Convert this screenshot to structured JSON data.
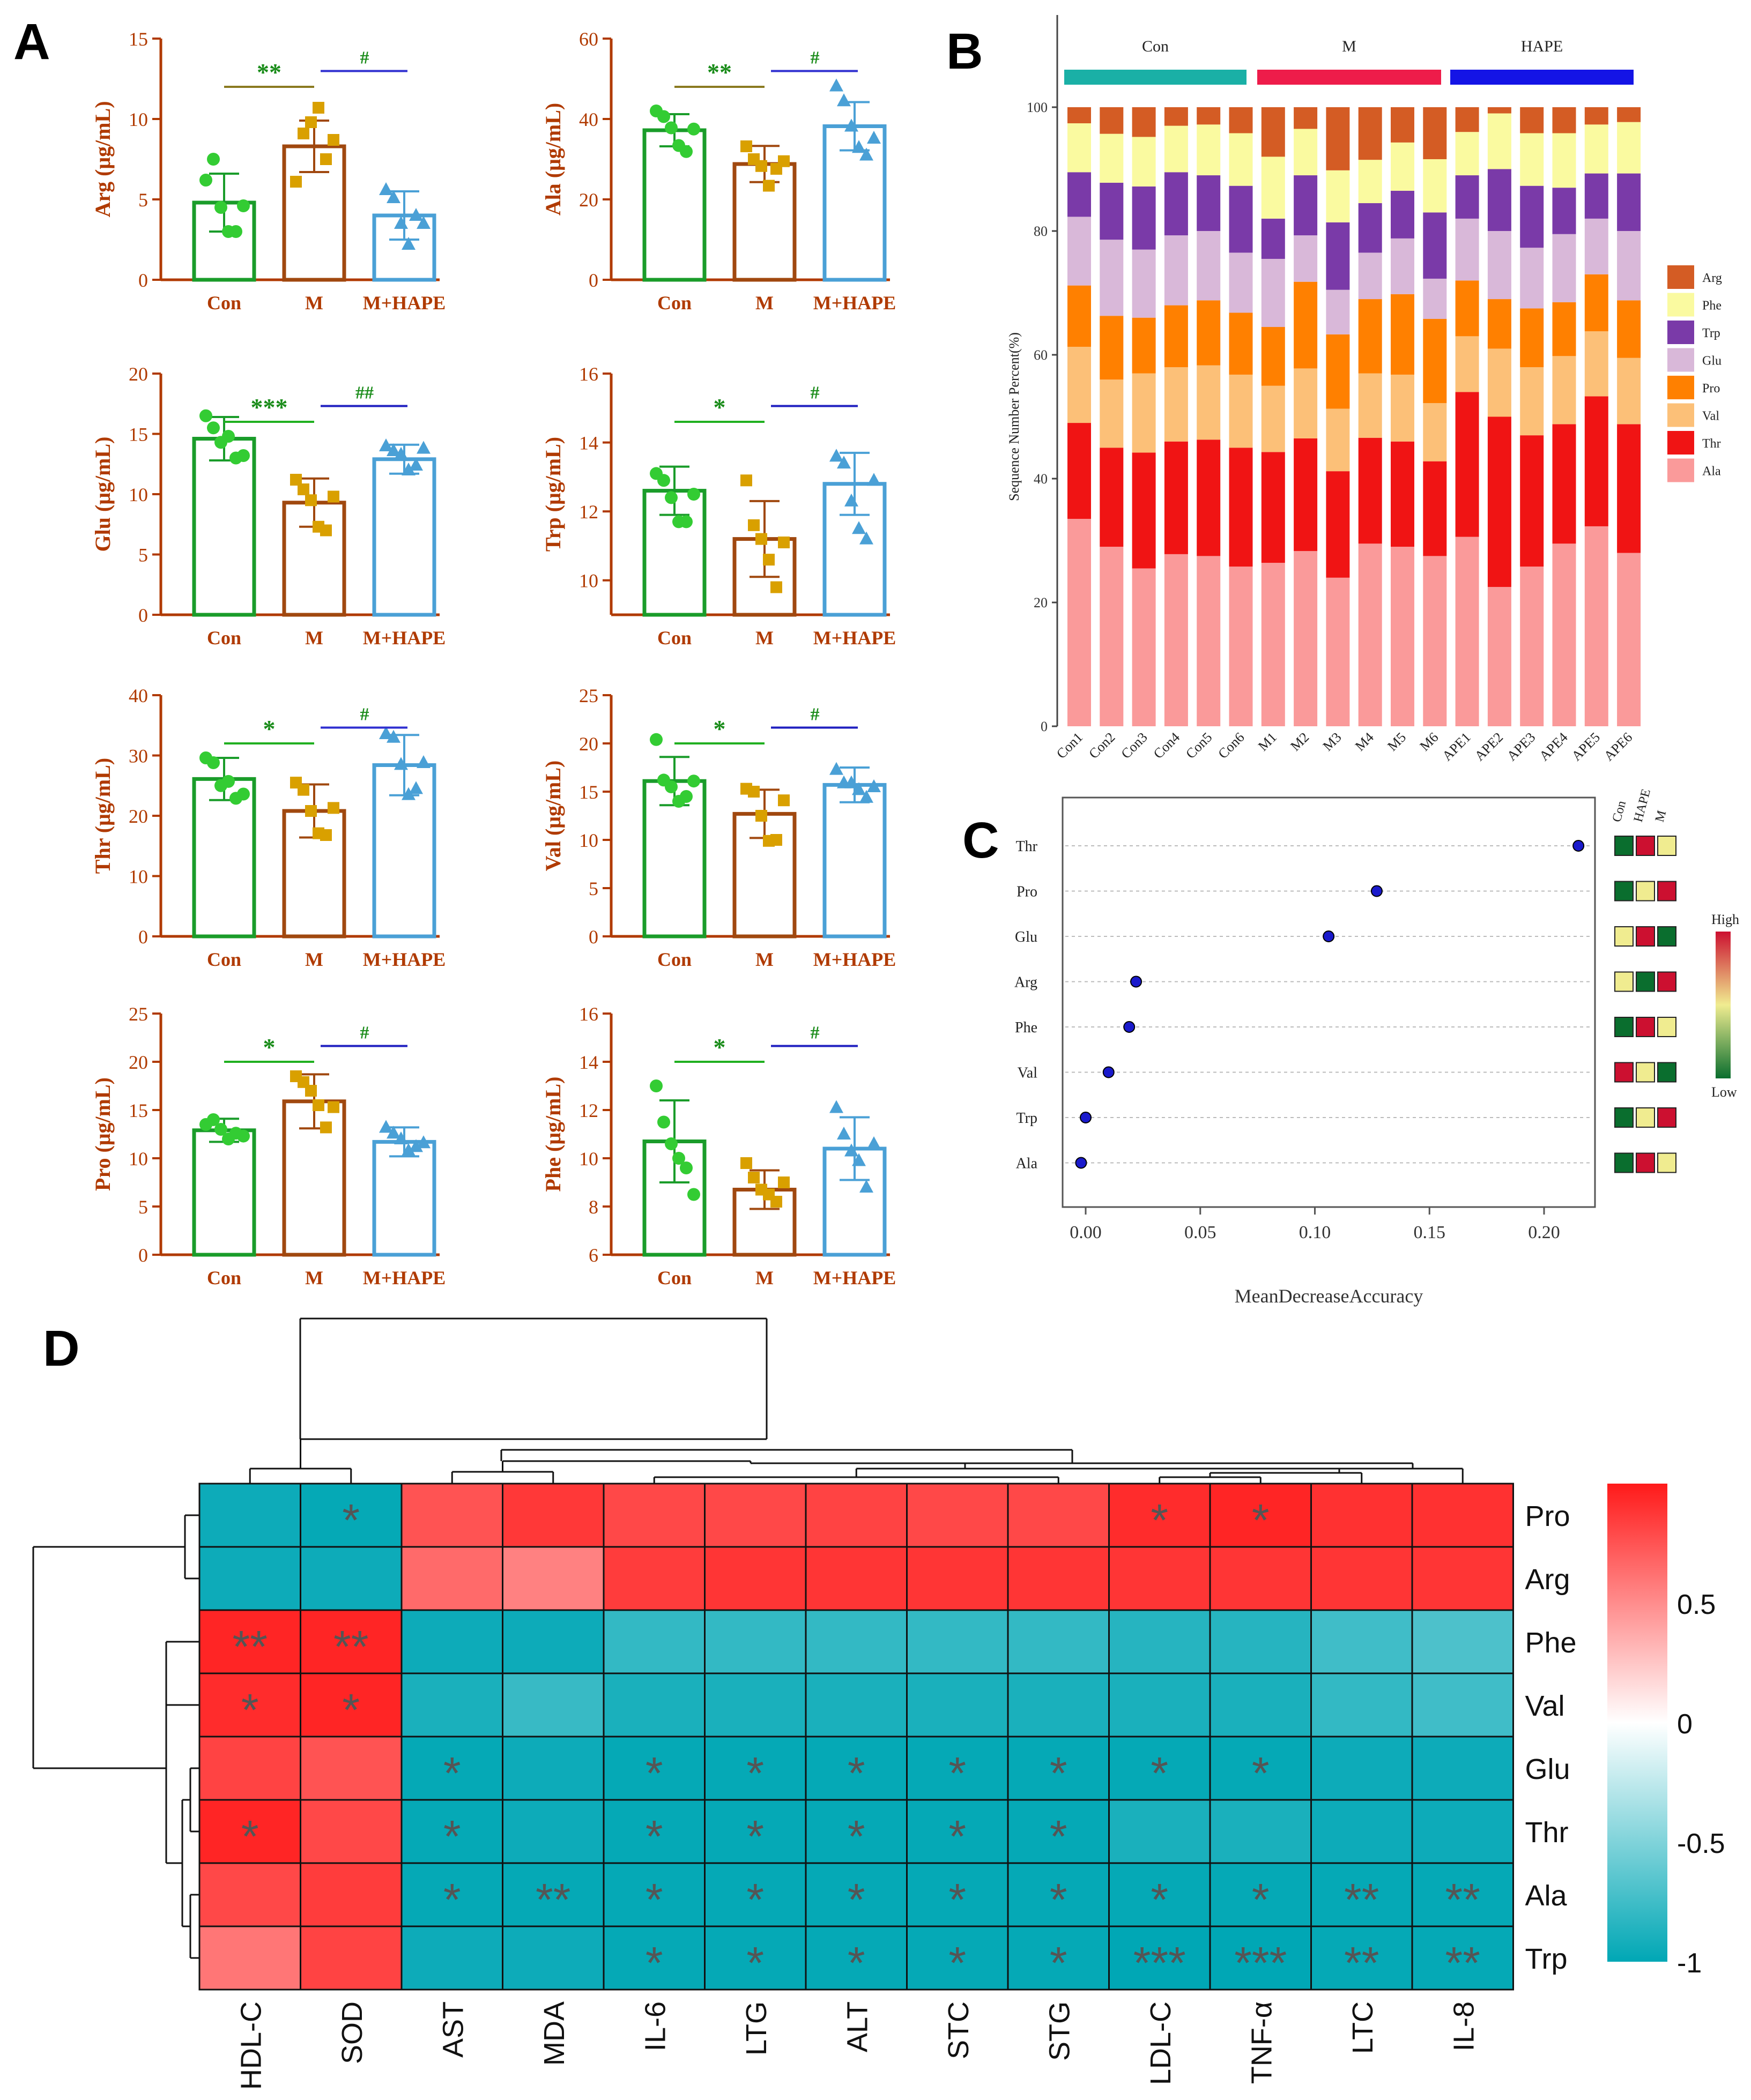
{
  "panel_labels": {
    "A": "A",
    "B": "B",
    "C": "C",
    "D": "D"
  },
  "colors": {
    "con": "#1a9c2a",
    "con_dot": "#33cc33",
    "m": "#a0480f",
    "m_dot": "#d9a000",
    "hape": "#4aa0d6",
    "sig_star": "#1a8c1a",
    "hash": "#2020c0",
    "axis_text": "#b03a00",
    "heat_high": "#ff1a1a",
    "heat_low": "#00a7b5"
  },
  "chart_data": [
    {
      "type": "bar",
      "id": "arg",
      "ylabel": "Arg (μg/mL)",
      "categories": [
        "Con",
        "M",
        "M+HAPE"
      ],
      "ylim": [
        0,
        15
      ],
      "yticks": [
        "0",
        "5",
        "10",
        "15"
      ],
      "values": [
        4.8,
        8.3,
        4.0
      ],
      "errors": [
        1.8,
        1.6,
        1.5
      ],
      "points": [
        [
          6.2,
          7.5,
          4.5,
          3.0,
          3.0,
          4.6
        ],
        [
          6.1,
          9.1,
          9.8,
          10.7,
          7.5,
          8.7
        ],
        [
          5.6,
          5.1,
          3.5,
          2.2,
          4.0,
          3.5
        ]
      ],
      "sig1": "**",
      "sig1_color": "#8a7a20",
      "sig2": "#",
      "sig2_color": "#3030d0"
    },
    {
      "type": "bar",
      "id": "ala",
      "ylabel": "Ala (μg/mL)",
      "categories": [
        "Con",
        "M",
        "M+HAPE"
      ],
      "ylim": [
        0,
        60
      ],
      "yticks": [
        "0",
        "20",
        "40",
        "60"
      ],
      "values": [
        37.2,
        28.8,
        38.2
      ],
      "errors": [
        4.0,
        4.5,
        6.0
      ],
      "points": [
        [
          42.0,
          40.6,
          37.8,
          33.4,
          31.9,
          37.5
        ],
        [
          33.2,
          30.0,
          28.3,
          23.4,
          27.6,
          29.5
        ],
        [
          48.2,
          44.5,
          38.2,
          32.9,
          31.0,
          35.2
        ]
      ],
      "sig1": "**",
      "sig1_color": "#8a7a20",
      "sig2": "#",
      "sig2_color": "#3030d0"
    },
    {
      "type": "bar",
      "id": "glu",
      "ylabel": "Glu (μg/mL)",
      "categories": [
        "Con",
        "M",
        "M+HAPE"
      ],
      "ylim": [
        0,
        20
      ],
      "yticks": [
        "0",
        "5",
        "10",
        "15",
        "20"
      ],
      "values": [
        14.6,
        9.3,
        12.9
      ],
      "errors": [
        1.8,
        2.0,
        1.2
      ],
      "points": [
        [
          16.5,
          15.5,
          14.3,
          14.8,
          13.0,
          13.2
        ],
        [
          11.2,
          10.4,
          9.5,
          7.3,
          7.0,
          9.8
        ],
        [
          14.0,
          13.6,
          13.3,
          12.0,
          12.4,
          13.8
        ]
      ],
      "sig1": "***",
      "sig1_color": "#20b020",
      "sig2": "##",
      "sig2_color": "#2020c0"
    },
    {
      "type": "bar",
      "id": "trp",
      "ylabel": "Trp (μg/mL)",
      "categories": [
        "Con",
        "M",
        "M+HAPE"
      ],
      "ylim": [
        9,
        16
      ],
      "yticks": [
        "10",
        "12",
        "14",
        "16"
      ],
      "values": [
        12.6,
        11.2,
        12.8
      ],
      "errors": [
        0.7,
        1.1,
        0.9
      ],
      "points": [
        [
          13.1,
          12.9,
          12.4,
          11.7,
          11.7,
          12.5
        ],
        [
          12.9,
          11.6,
          11.2,
          10.6,
          9.8,
          11.1
        ],
        [
          13.6,
          13.4,
          12.3,
          11.5,
          11.2,
          12.9
        ]
      ],
      "sig1": "*",
      "sig1_color": "#20b020",
      "sig2": "#",
      "sig2_color": "#2020c0"
    },
    {
      "type": "bar",
      "id": "thr",
      "ylabel": "Thr (μg/mL)",
      "categories": [
        "Con",
        "M",
        "M+HAPE"
      ],
      "ylim": [
        0,
        40
      ],
      "yticks": [
        "0",
        "10",
        "20",
        "30",
        "40"
      ],
      "values": [
        26.1,
        20.8,
        28.4
      ],
      "errors": [
        3.5,
        4.4,
        5.0
      ],
      "points": [
        [
          29.6,
          28.8,
          25.0,
          25.7,
          22.9,
          23.6
        ],
        [
          25.5,
          24.3,
          20.8,
          17.1,
          16.8,
          21.3
        ],
        [
          33.6,
          33.0,
          28.5,
          23.5,
          24.5,
          28.8
        ]
      ],
      "sig1": "*",
      "sig1_color": "#20b020",
      "sig2": "#",
      "sig2_color": "#3030d0"
    },
    {
      "type": "bar",
      "id": "val",
      "ylabel": "Val (μg/mL)",
      "categories": [
        "Con",
        "M",
        "M+HAPE"
      ],
      "ylim": [
        0,
        25
      ],
      "yticks": [
        "0",
        "5",
        "10",
        "15",
        "20",
        "25"
      ],
      "values": [
        16.1,
        12.7,
        15.7
      ],
      "errors": [
        2.5,
        2.5,
        1.8
      ],
      "points": [
        [
          20.4,
          16.2,
          15.5,
          14.0,
          14.5,
          16.1
        ],
        [
          15.3,
          15.0,
          12.5,
          9.9,
          10.0,
          14.1
        ],
        [
          17.3,
          15.9,
          15.9,
          15.2,
          14.4,
          15.5
        ]
      ],
      "sig1": "*",
      "sig1_color": "#20b020",
      "sig2": "#",
      "sig2_color": "#2020c0"
    },
    {
      "type": "bar",
      "id": "pro",
      "ylabel": "Pro (μg/mL)",
      "categories": [
        "Con",
        "M",
        "M+HAPE"
      ],
      "ylim": [
        0,
        25
      ],
      "yticks": [
        "0",
        "5",
        "10",
        "15",
        "20",
        "25"
      ],
      "values": [
        12.9,
        15.9,
        11.7
      ],
      "errors": [
        1.2,
        2.8,
        1.5
      ],
      "points": [
        [
          13.5,
          14.0,
          13.0,
          12.0,
          12.6,
          12.3
        ],
        [
          18.5,
          17.9,
          17.0,
          15.5,
          13.2,
          15.3
        ],
        [
          13.2,
          12.6,
          12.0,
          10.8,
          11.2,
          11.6
        ]
      ],
      "sig1": "*",
      "sig1_color": "#20b020",
      "sig2": "#",
      "sig2_color": "#2020c0"
    },
    {
      "type": "bar",
      "id": "phe",
      "ylabel": "Phe (μg/mL)",
      "categories": [
        "Con",
        "M",
        "M+HAPE"
      ],
      "ylim": [
        6,
        16
      ],
      "yticks": [
        "6",
        "8",
        "10",
        "12",
        "14",
        "16"
      ],
      "values": [
        10.7,
        8.7,
        10.4
      ],
      "errors": [
        1.7,
        0.8,
        1.3
      ],
      "points": [
        [
          13.0,
          11.5,
          10.6,
          10.0,
          9.6,
          8.5
        ],
        [
          9.8,
          9.2,
          8.7,
          8.5,
          8.2,
          9.0
        ],
        [
          12.1,
          11.0,
          10.3,
          9.9,
          8.8,
          10.6
        ]
      ],
      "sig1": "*",
      "sig1_color": "#20b020",
      "sig2": "#",
      "sig2_color": "#2020c0"
    },
    {
      "type": "stacked_bar",
      "id": "composition",
      "ylabel": "Sequence Number Percent(%)",
      "yticks": [
        "0",
        "20",
        "40",
        "60",
        "80",
        "100"
      ],
      "ylim": [
        0,
        100
      ],
      "categories": [
        "Con1",
        "Con2",
        "Con3",
        "Con4",
        "Con5",
        "Con6",
        "M1",
        "M2",
        "M3",
        "M4",
        "M5",
        "M6",
        "APE1",
        "APE2",
        "APE3",
        "APE4",
        "APE5",
        "APE6"
      ],
      "groups": [
        {
          "name": "Con",
          "color": "#1ab0a6"
        },
        {
          "name": "M",
          "color": "#ee1c4a"
        },
        {
          "name": "HAPE",
          "color": "#1414e6"
        }
      ],
      "stack_order": [
        "Ala",
        "Thr",
        "Val",
        "Pro",
        "Glu",
        "Trp",
        "Phe",
        "Arg"
      ],
      "legend": [
        {
          "name": "Arg",
          "color": "#d45c24"
        },
        {
          "name": "Phe",
          "color": "#fafaa0"
        },
        {
          "name": "Trp",
          "color": "#7a3aa8"
        },
        {
          "name": "Glu",
          "color": "#d9b8d9"
        },
        {
          "name": "Pro",
          "color": "#ff8000"
        },
        {
          "name": "Val",
          "color": "#fcc078"
        },
        {
          "name": "Thr",
          "color": "#f01414"
        },
        {
          "name": "Ala",
          "color": "#fa9a9a"
        }
      ],
      "cumulative": [
        [
          33.5,
          49.0,
          61.3,
          71.2,
          82.3,
          89.5,
          97.4,
          100
        ],
        [
          29.0,
          45.0,
          56.0,
          66.3,
          78.6,
          87.8,
          95.7,
          100
        ],
        [
          25.5,
          44.2,
          57.0,
          66.0,
          77.0,
          87.2,
          95.2,
          100
        ],
        [
          27.8,
          46.0,
          58.0,
          68.0,
          79.3,
          89.5,
          97.0,
          100
        ],
        [
          27.5,
          46.3,
          58.3,
          68.8,
          80.0,
          89.0,
          97.2,
          100
        ],
        [
          25.8,
          45.0,
          56.8,
          66.8,
          76.5,
          87.3,
          95.8,
          100
        ],
        [
          26.4,
          44.3,
          55.0,
          64.5,
          75.5,
          82.0,
          92.0,
          100
        ],
        [
          28.3,
          46.5,
          57.8,
          71.8,
          79.3,
          89.0,
          96.5,
          100
        ],
        [
          24.0,
          41.2,
          51.3,
          63.3,
          70.5,
          81.4,
          89.8,
          100
        ],
        [
          29.5,
          46.6,
          57.0,
          69.0,
          76.5,
          84.5,
          91.5,
          100
        ],
        [
          29.0,
          46.0,
          56.8,
          69.8,
          78.8,
          86.5,
          94.3,
          100
        ],
        [
          27.5,
          42.8,
          52.2,
          65.8,
          72.3,
          83.0,
          91.6,
          100
        ],
        [
          30.6,
          54.0,
          63.0,
          72.0,
          82.0,
          89.0,
          96.0,
          100
        ],
        [
          22.5,
          50.0,
          61.0,
          69.0,
          80.0,
          90.0,
          99.0,
          100
        ],
        [
          25.8,
          47.0,
          58.0,
          67.5,
          77.3,
          87.3,
          95.8,
          100
        ],
        [
          29.5,
          48.8,
          59.8,
          68.5,
          79.5,
          87.0,
          95.8,
          100
        ],
        [
          32.3,
          53.3,
          63.8,
          73.0,
          82.0,
          89.3,
          97.2,
          100
        ],
        [
          28.0,
          48.8,
          59.5,
          68.8,
          80.0,
          89.3,
          97.6,
          100
        ]
      ]
    },
    {
      "type": "scatter",
      "id": "importance",
      "xlabel": "MeanDecreaseAccuracy",
      "xlim": [
        -0.01,
        0.22
      ],
      "xticks": [
        "0.00",
        "0.05",
        "0.10",
        "0.15",
        "0.20"
      ],
      "features": [
        "Thr",
        "Pro",
        "Glu",
        "Arg",
        "Phe",
        "Val",
        "Trp",
        "Ala"
      ],
      "values": [
        0.215,
        0.127,
        0.106,
        0.022,
        0.019,
        0.01,
        0.0,
        -0.002
      ],
      "heat_columns": [
        "Con",
        "HAPE",
        "M"
      ],
      "heat_levels": [
        [
          0,
          2,
          1
        ],
        [
          0,
          1,
          2
        ],
        [
          1,
          2,
          0
        ],
        [
          1,
          0,
          2
        ],
        [
          0,
          2,
          1
        ],
        [
          2,
          1,
          0
        ],
        [
          0,
          1,
          2
        ],
        [
          0,
          2,
          1
        ]
      ],
      "legend_high": "High",
      "legend_low": "Low"
    },
    {
      "type": "heatmap",
      "id": "correlation",
      "rows": [
        "Pro",
        "Arg",
        "Phe",
        "Val",
        "Glu",
        "Thr",
        "Ala",
        "Trp"
      ],
      "columns": [
        "HDL-C",
        "SOD",
        "AST",
        "MDA",
        "IL-6",
        "LTG",
        "ALT",
        "STC",
        "STG",
        "LDL-C",
        "TNF-α",
        "LTC",
        "IL-8"
      ],
      "values": [
        [
          -0.95,
          -0.98,
          0.75,
          0.87,
          0.8,
          0.8,
          0.82,
          0.8,
          0.8,
          0.92,
          0.95,
          0.9,
          0.9
        ],
        [
          -0.95,
          -0.95,
          0.65,
          0.55,
          0.85,
          0.88,
          0.88,
          0.88,
          0.88,
          0.88,
          0.88,
          0.88,
          0.88
        ],
        [
          0.95,
          0.95,
          -0.95,
          -0.95,
          -0.8,
          -0.8,
          -0.8,
          -0.8,
          -0.8,
          -0.85,
          -0.85,
          -0.75,
          -0.7
        ],
        [
          0.92,
          0.95,
          -0.9,
          -0.78,
          -0.9,
          -0.9,
          -0.9,
          -0.9,
          -0.9,
          -0.9,
          -0.9,
          -0.8,
          -0.75
        ],
        [
          0.82,
          0.75,
          -0.98,
          -0.95,
          -0.98,
          -0.98,
          -0.98,
          -0.98,
          -0.98,
          -0.98,
          -0.98,
          -0.95,
          -0.95
        ],
        [
          0.95,
          0.8,
          -0.98,
          -0.95,
          -0.98,
          -0.98,
          -0.98,
          -0.98,
          -0.98,
          -0.9,
          -0.9,
          -0.95,
          -0.95
        ],
        [
          0.8,
          0.85,
          -0.98,
          -0.98,
          -0.98,
          -0.98,
          -0.98,
          -0.98,
          -0.98,
          -0.98,
          -0.98,
          -0.98,
          -0.98
        ],
        [
          0.6,
          0.82,
          -0.95,
          -0.95,
          -0.98,
          -0.98,
          -0.98,
          -0.98,
          -0.98,
          -1.0,
          -1.0,
          -0.98,
          -0.98
        ]
      ],
      "stars": [
        [
          "",
          "*",
          "",
          "",
          "",
          "",
          "",
          "",
          "",
          "*",
          "*",
          "",
          ""
        ],
        [
          "",
          "",
          "",
          "",
          "",
          "",
          "",
          "",
          "",
          "",
          "",
          "",
          ""
        ],
        [
          "**",
          "**",
          "",
          "",
          "",
          "",
          "",
          "",
          "",
          "",
          "",
          "",
          ""
        ],
        [
          "*",
          "*",
          "",
          "",
          "",
          "",
          "",
          "",
          "",
          "",
          "",
          "",
          ""
        ],
        [
          "",
          "",
          "*",
          "",
          "*",
          "*",
          "*",
          "*",
          "*",
          "*",
          "*",
          "",
          ""
        ],
        [
          "*",
          "",
          "*",
          "",
          "*",
          "*",
          "*",
          "*",
          "*",
          "",
          "",
          "",
          ""
        ],
        [
          "",
          "",
          "*",
          "**",
          "*",
          "*",
          "*",
          "*",
          "*",
          "*",
          "*",
          "**",
          "**"
        ],
        [
          "",
          "",
          "",
          "",
          "*",
          "*",
          "*",
          "*",
          "*",
          "***",
          "***",
          "**",
          "**"
        ]
      ],
      "scale_labels": [
        "0.5",
        "0",
        "-0.5",
        "-1"
      ],
      "scale_values": [
        0.5,
        0,
        -0.5,
        -1
      ]
    }
  ]
}
